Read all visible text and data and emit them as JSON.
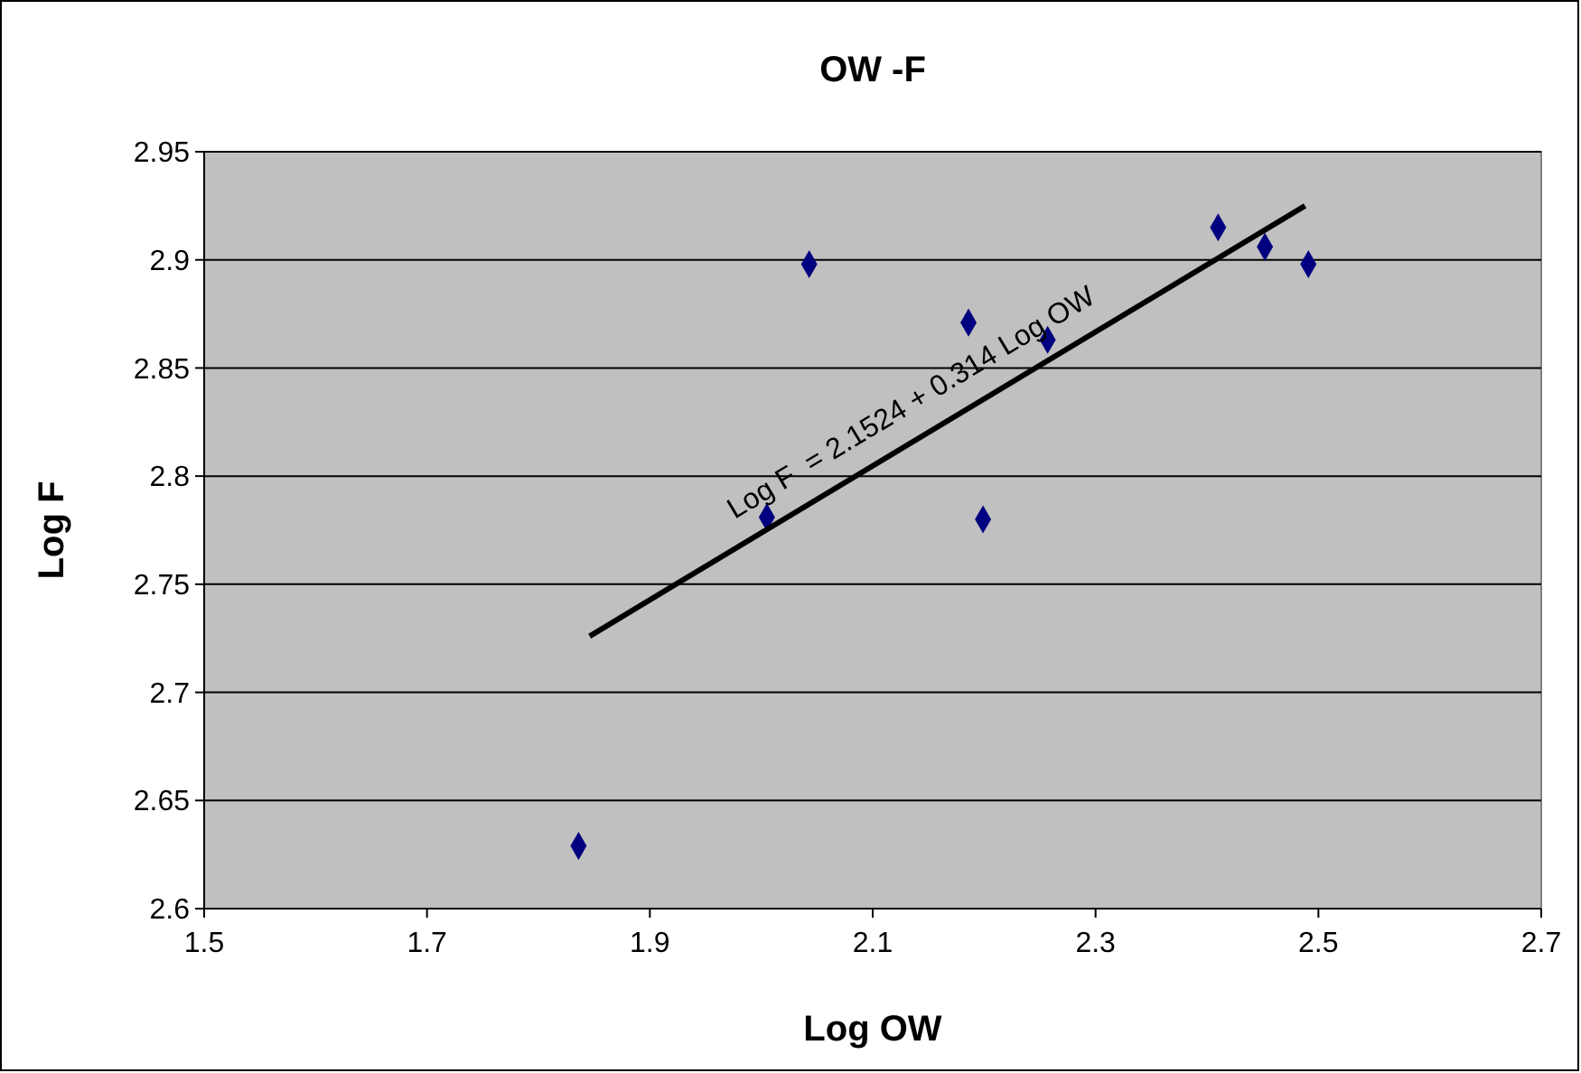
{
  "chart_data": {
    "type": "scatter",
    "title": "OW -F",
    "xlabel": "Log OW",
    "ylabel": "Log F",
    "xlim": [
      1.5,
      2.7
    ],
    "xticks": [
      1.5,
      1.7,
      1.9,
      2.1,
      2.3,
      2.5,
      2.7
    ],
    "ylim": [
      2.6,
      2.95
    ],
    "yticks": [
      2.6,
      2.65,
      2.7,
      2.75,
      2.8,
      2.85,
      2.9,
      2.95
    ],
    "grid": "y",
    "marker": "diamond",
    "annotations": [
      "Log F  = 2.1524 + 0.314 Log OW"
    ],
    "series": [
      {
        "color": "#000080",
        "x": [
          1.836,
          2.005,
          2.043,
          2.186,
          2.199,
          2.257,
          2.41,
          2.452,
          2.491
        ],
        "values": [
          2.629,
          2.781,
          2.898,
          2.871,
          2.78,
          2.863,
          2.915,
          2.906,
          2.898
        ]
      },
      {
        "type": "line",
        "color": "#000000",
        "marker": "none",
        "line_style": "solid",
        "x": [
          1.846,
          2.488
        ],
        "values": [
          2.726,
          2.925
        ]
      }
    ]
  }
}
